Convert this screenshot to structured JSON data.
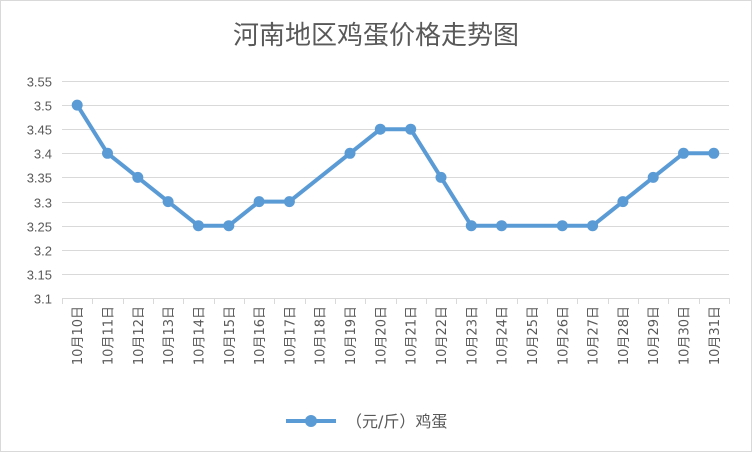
{
  "chart_data": {
    "type": "line",
    "title": "河南地区鸡蛋价格走势图",
    "xlabel": "",
    "ylabel": "",
    "ylim": [
      3.1,
      3.55
    ],
    "ystep": 0.05,
    "yticks": [
      "3.1",
      "3.15",
      "3.2",
      "3.25",
      "3.3",
      "3.35",
      "3.4",
      "3.45",
      "3.5",
      "3.55"
    ],
    "categories": [
      "10月10日",
      "10月11日",
      "10月12日",
      "10月13日",
      "10月14日",
      "10月15日",
      "10月16日",
      "10月17日",
      "10月18日",
      "10月19日",
      "10月20日",
      "10月21日",
      "10月22日",
      "10月23日",
      "10月24日",
      "10月25日",
      "10月26日",
      "10月27日",
      "10月28日",
      "10月29日",
      "10月30日",
      "10月31日"
    ],
    "series": [
      {
        "name": "（元/斤）鸡蛋",
        "color": "#5b9bd5",
        "values": [
          3.5,
          3.4,
          3.35,
          3.3,
          3.25,
          3.25,
          3.3,
          3.3,
          null,
          3.4,
          3.45,
          3.45,
          3.35,
          3.25,
          3.25,
          null,
          3.25,
          3.25,
          3.3,
          3.35,
          3.4,
          3.4
        ]
      }
    ],
    "grid": true,
    "legend": "bottom"
  }
}
